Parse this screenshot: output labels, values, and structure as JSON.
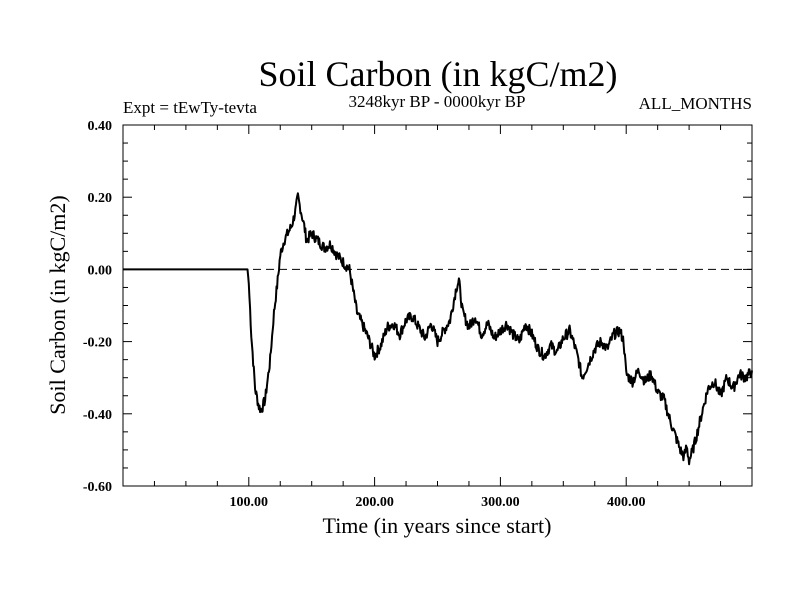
{
  "chart_data": {
    "type": "line",
    "title": "Soil Carbon (in kgC/m2)",
    "expt_label": "Expt = tEwTy-tevta",
    "period_label": "3248kyr BP - 0000kyr BP",
    "months_label": "ALL_MONTHS",
    "xlabel": "Time (in years since start)",
    "ylabel": "Soil Carbon (in kgC/m2)",
    "xlim": [
      0,
      500
    ],
    "ylim": [
      -0.6,
      0.4
    ],
    "x_ticks": [
      100,
      200,
      300,
      400
    ],
    "x_tick_labels": [
      "100.00",
      "200.00",
      "300.00",
      "400.00"
    ],
    "y_ticks": [
      -0.6,
      -0.4,
      -0.2,
      0.0,
      0.2,
      0.4
    ],
    "y_tick_labels": [
      "-0.60",
      "-0.40",
      "-0.20",
      "0.00",
      "0.20",
      "0.40"
    ],
    "reference_line": 0.0,
    "series": [
      {
        "name": "Soil Carbon",
        "x": [
          0,
          99,
          100,
          102,
          105,
          108,
          110,
          113,
          117,
          120,
          123,
          125,
          128,
          131,
          134,
          137,
          139,
          141,
          144,
          146,
          150,
          155,
          160,
          165,
          170,
          175,
          180,
          183,
          186,
          190,
          195,
          200,
          205,
          210,
          215,
          220,
          225,
          230,
          235,
          240,
          245,
          250,
          255,
          260,
          265,
          267,
          270,
          275,
          280,
          285,
          290,
          295,
          300,
          305,
          310,
          315,
          320,
          325,
          330,
          335,
          340,
          345,
          350,
          355,
          358,
          362,
          365,
          370,
          375,
          380,
          385,
          390,
          395,
          398,
          400,
          405,
          410,
          415,
          420,
          425,
          430,
          435,
          440,
          443,
          446,
          448,
          450,
          453,
          456,
          460,
          465,
          470,
          475,
          480,
          485,
          490,
          495,
          500
        ],
        "y": [
          0.0,
          0.0,
          -0.04,
          -0.18,
          -0.33,
          -0.38,
          -0.39,
          -0.36,
          -0.25,
          -0.12,
          -0.03,
          0.04,
          0.08,
          0.1,
          0.12,
          0.16,
          0.2,
          0.17,
          0.12,
          0.08,
          0.1,
          0.08,
          0.06,
          0.07,
          0.04,
          0.02,
          0.0,
          -0.06,
          -0.12,
          -0.15,
          -0.19,
          -0.24,
          -0.21,
          -0.16,
          -0.15,
          -0.18,
          -0.14,
          -0.13,
          -0.16,
          -0.19,
          -0.15,
          -0.2,
          -0.17,
          -0.14,
          -0.05,
          -0.03,
          -0.12,
          -0.16,
          -0.13,
          -0.18,
          -0.15,
          -0.19,
          -0.17,
          -0.15,
          -0.18,
          -0.2,
          -0.15,
          -0.18,
          -0.22,
          -0.24,
          -0.21,
          -0.23,
          -0.19,
          -0.17,
          -0.2,
          -0.25,
          -0.3,
          -0.26,
          -0.22,
          -0.2,
          -0.22,
          -0.18,
          -0.17,
          -0.2,
          -0.29,
          -0.31,
          -0.28,
          -0.31,
          -0.29,
          -0.34,
          -0.36,
          -0.42,
          -0.47,
          -0.5,
          -0.52,
          -0.49,
          -0.53,
          -0.5,
          -0.46,
          -0.4,
          -0.33,
          -0.31,
          -0.35,
          -0.3,
          -0.33,
          -0.29,
          -0.3,
          -0.28
        ]
      }
    ]
  }
}
